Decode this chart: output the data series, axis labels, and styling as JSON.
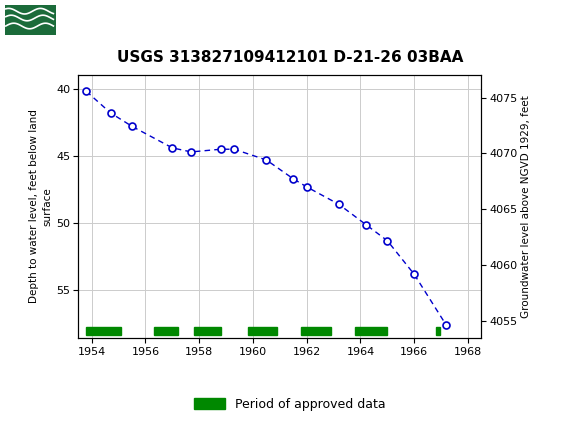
{
  "title": "USGS 313827109412101 D-21-26 03BAA",
  "ylabel_left": "Depth to water level, feet below land\nsurface",
  "ylabel_right": "Groundwater level above NGVD 1929, feet",
  "x_data": [
    1953.8,
    1954.7,
    1955.5,
    1957.0,
    1957.7,
    1958.8,
    1959.3,
    1960.5,
    1961.5,
    1962.0,
    1963.2,
    1964.2,
    1965.0,
    1966.0,
    1967.2
  ],
  "y_data": [
    40.2,
    41.8,
    42.8,
    44.4,
    44.7,
    44.5,
    44.5,
    45.3,
    46.7,
    47.3,
    48.6,
    50.1,
    51.3,
    53.8,
    57.6
  ],
  "xlim": [
    1953.5,
    1968.5
  ],
  "ylim_left": [
    58.5,
    39.0
  ],
  "ylim_right": [
    4053.5,
    4077.0
  ],
  "xticks": [
    1954,
    1956,
    1958,
    1960,
    1962,
    1964,
    1966,
    1968
  ],
  "yticks_left": [
    40,
    45,
    50,
    55
  ],
  "yticks_right": [
    4055,
    4060,
    4065,
    4070,
    4075
  ],
  "line_color": "#0000CC",
  "marker_facecolor": "#FFFFFF",
  "marker_edgecolor": "#0000CC",
  "grid_color": "#CCCCCC",
  "bg_color": "#FFFFFF",
  "plot_bg_color": "#FFFFFF",
  "header_color": "#1B6B3A",
  "legend_label": "Period of approved data",
  "legend_color": "#008800",
  "green_bars": [
    [
      1953.8,
      1955.1
    ],
    [
      1956.3,
      1957.2
    ],
    [
      1957.8,
      1958.8
    ],
    [
      1959.8,
      1960.9
    ],
    [
      1961.8,
      1962.9
    ],
    [
      1963.8,
      1965.0
    ],
    [
      1966.8,
      1966.95
    ]
  ],
  "font_size_title": 11,
  "font_size_tick": 8,
  "font_size_label": 7.5,
  "font_size_legend": 9
}
